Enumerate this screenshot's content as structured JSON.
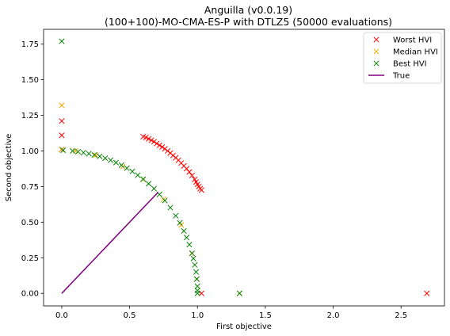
{
  "chart_data": {
    "type": "scatter",
    "title_line1": "Anguilla (v0.0.19)",
    "title_line2": "(100+100)-MO-CMA-ES-P with DTLZ5 (50000 evaluations)",
    "xlabel": "First objective",
    "ylabel": "Second objective",
    "xlim": [
      -0.134,
      2.82
    ],
    "ylim": [
      -0.088,
      1.854
    ],
    "xticks": [
      0.0,
      0.5,
      1.0,
      1.5,
      2.0,
      2.5
    ],
    "xtick_labels": [
      "0.0",
      "0.5",
      "1.0",
      "1.5",
      "2.0",
      "2.5"
    ],
    "yticks": [
      0.0,
      0.25,
      0.5,
      0.75,
      1.0,
      1.25,
      1.5,
      1.75
    ],
    "ytick_labels": [
      "0.00",
      "0.25",
      "0.50",
      "0.75",
      "1.00",
      "1.25",
      "1.50",
      "1.75"
    ],
    "grid": false,
    "legend_position": "top-right",
    "series": [
      {
        "name": "Worst HVI",
        "marker": "x",
        "color": "#ff0000",
        "points": [
          [
            0.0,
            1.21
          ],
          [
            0.0,
            1.11
          ],
          [
            0.0,
            1.01
          ],
          [
            1.03,
            0.0
          ],
          [
            2.69,
            0.0
          ],
          [
            0.6,
            1.1
          ],
          [
            0.62,
            1.095
          ],
          [
            0.64,
            1.085
          ],
          [
            0.66,
            1.075
          ],
          [
            0.68,
            1.065
          ],
          [
            0.7,
            1.052
          ],
          [
            0.72,
            1.04
          ],
          [
            0.74,
            1.028
          ],
          [
            0.76,
            1.015
          ],
          [
            0.78,
            1.0
          ],
          [
            0.8,
            0.985
          ],
          [
            0.82,
            0.968
          ],
          [
            0.84,
            0.952
          ],
          [
            0.86,
            0.935
          ],
          [
            0.88,
            0.915
          ],
          [
            0.9,
            0.895
          ],
          [
            0.92,
            0.875
          ],
          [
            0.94,
            0.852
          ],
          [
            0.96,
            0.828
          ],
          [
            0.98,
            0.8
          ],
          [
            0.99,
            0.782
          ],
          [
            1.0,
            0.765
          ],
          [
            1.01,
            0.75
          ],
          [
            1.02,
            0.735
          ],
          [
            1.03,
            0.725
          ]
        ]
      },
      {
        "name": "Median HVI",
        "marker": "x",
        "color": "#ffa500",
        "points": [
          [
            0.0,
            1.32
          ],
          [
            0.0,
            1.01
          ],
          [
            1.31,
            0.0
          ],
          [
            0.1,
            1.0
          ],
          [
            0.25,
            0.97
          ],
          [
            0.45,
            0.89
          ],
          [
            0.6,
            0.8
          ],
          [
            0.75,
            0.66
          ],
          [
            0.88,
            0.48
          ],
          [
            0.96,
            0.28
          ],
          [
            0.995,
            0.1
          ]
        ]
      },
      {
        "name": "Best HVI",
        "marker": "x",
        "color": "#008000",
        "points": [
          [
            0.0,
            1.77
          ],
          [
            0.01,
            1.005
          ],
          [
            1.0,
            0.0
          ],
          [
            1.31,
            0.0
          ],
          [
            0.08,
            1.0
          ],
          [
            0.12,
            0.995
          ],
          [
            0.16,
            0.988
          ],
          [
            0.2,
            0.981
          ],
          [
            0.24,
            0.972
          ],
          [
            0.28,
            0.962
          ],
          [
            0.32,
            0.949
          ],
          [
            0.36,
            0.935
          ],
          [
            0.4,
            0.918
          ],
          [
            0.44,
            0.9
          ],
          [
            0.48,
            0.879
          ],
          [
            0.52,
            0.856
          ],
          [
            0.56,
            0.83
          ],
          [
            0.6,
            0.802
          ],
          [
            0.64,
            0.77
          ],
          [
            0.68,
            0.735
          ],
          [
            0.72,
            0.695
          ],
          [
            0.76,
            0.652
          ],
          [
            0.8,
            0.602
          ],
          [
            0.84,
            0.545
          ],
          [
            0.87,
            0.495
          ],
          [
            0.9,
            0.438
          ],
          [
            0.92,
            0.392
          ],
          [
            0.94,
            0.342
          ],
          [
            0.96,
            0.282
          ],
          [
            0.97,
            0.245
          ],
          [
            0.98,
            0.2
          ],
          [
            0.99,
            0.15
          ],
          [
            0.995,
            0.1
          ],
          [
            1.0,
            0.05
          ],
          [
            1.0,
            0.02
          ]
        ]
      },
      {
        "name": "True",
        "marker": "line",
        "color": "#800080",
        "points": [
          [
            0.0,
            0.0
          ],
          [
            0.71,
            0.71
          ]
        ]
      }
    ]
  }
}
